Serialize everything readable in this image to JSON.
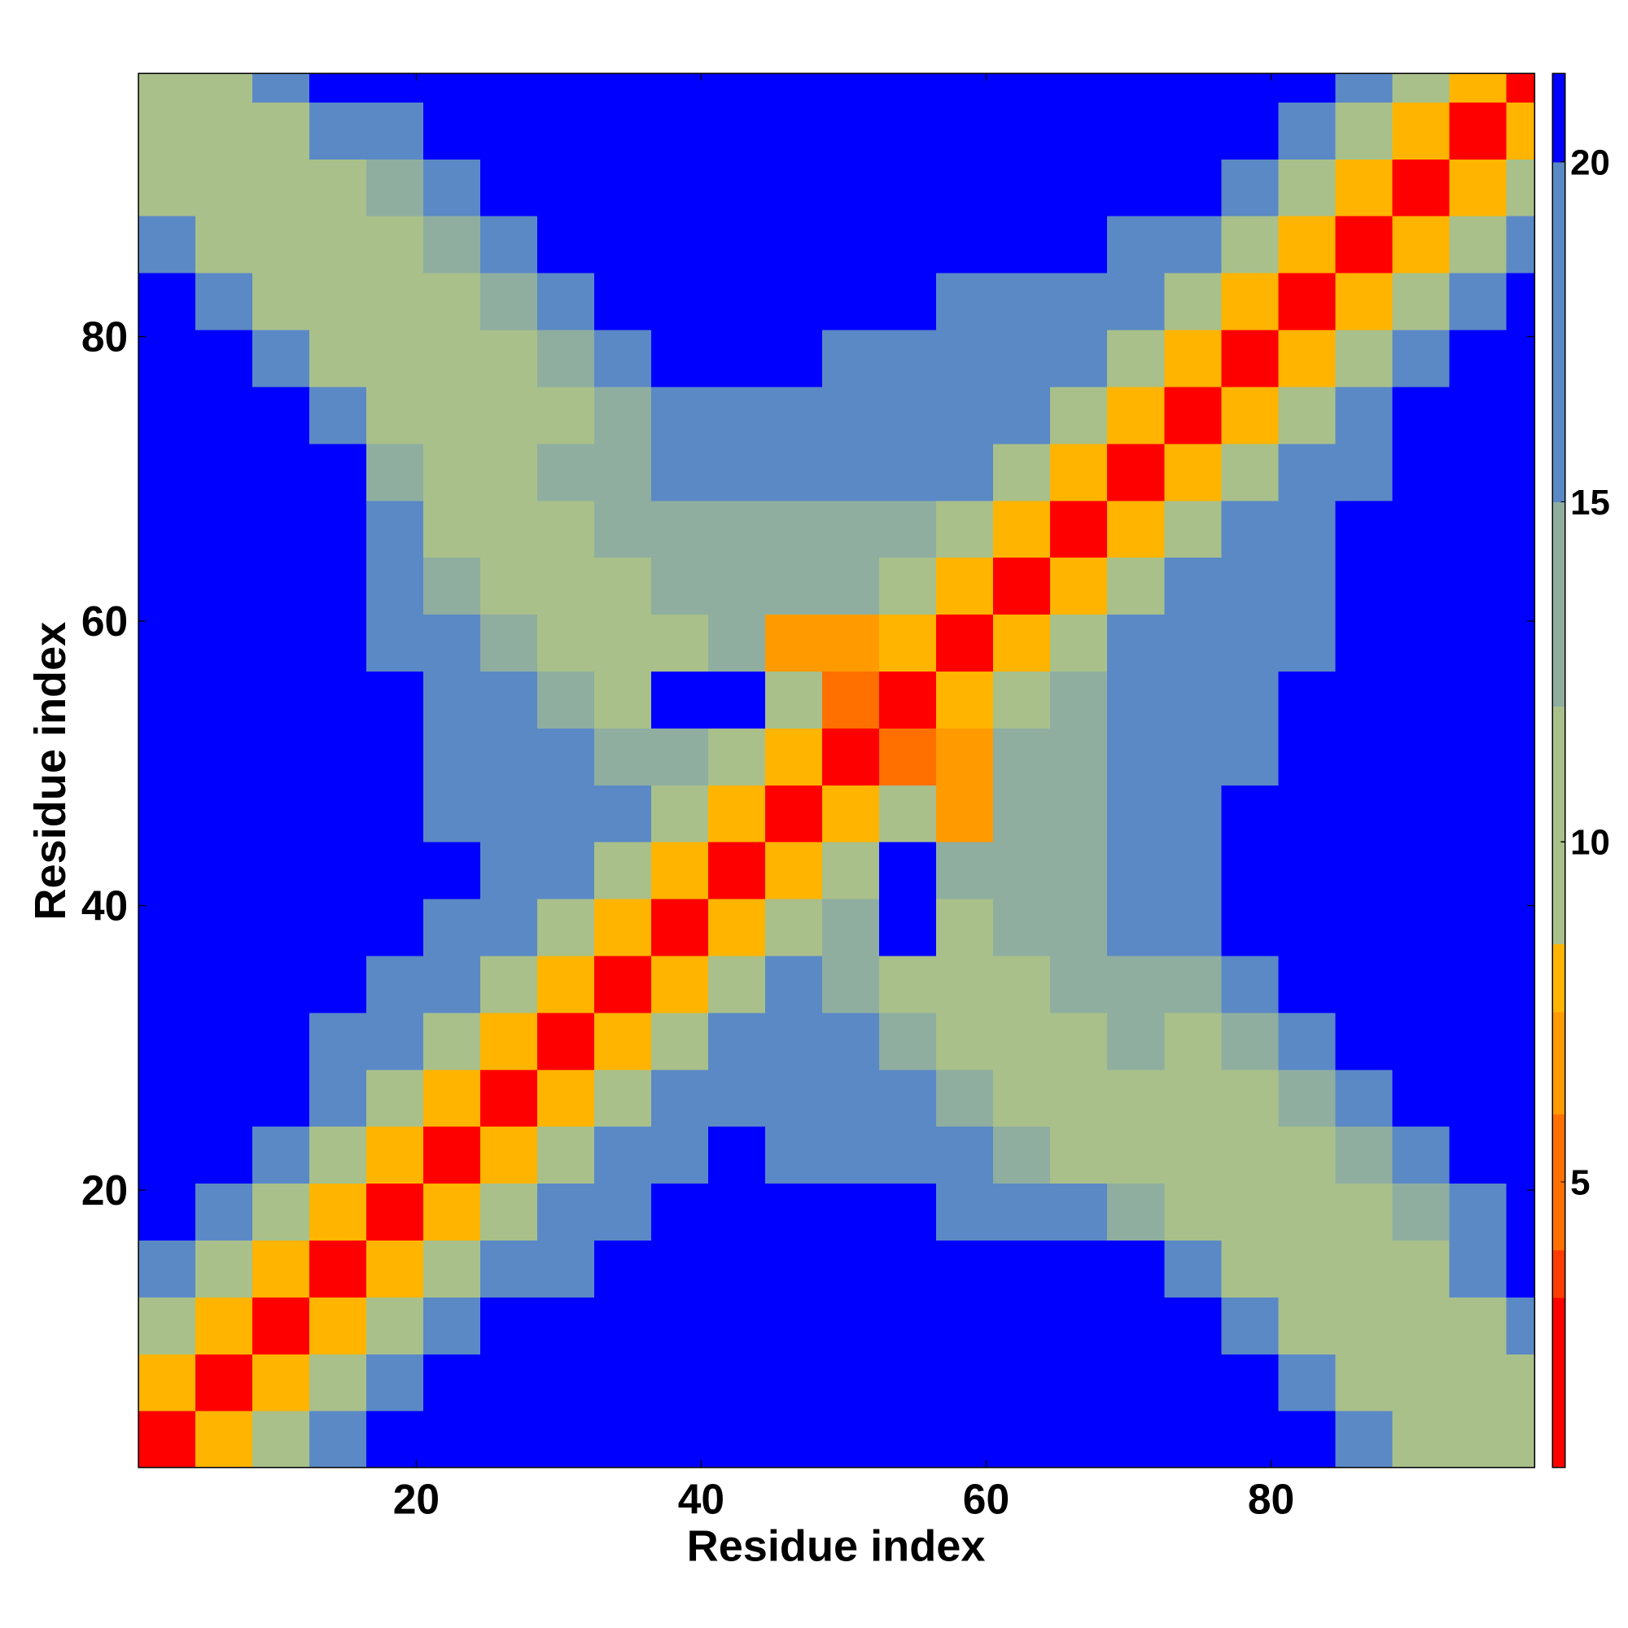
{
  "chart_data": {
    "type": "heatmap",
    "xlabel": "Residue index",
    "ylabel": "Residue index",
    "xlim": [
      0.5,
      98.5
    ],
    "ylim": [
      0.5,
      98.5
    ],
    "xticks": [
      20,
      40,
      60,
      80
    ],
    "yticks": [
      20,
      40,
      60,
      80
    ],
    "x_edges": [
      0.5,
      4.5,
      8.5,
      12.5,
      16.5,
      20.5,
      24.5,
      28.5,
      32.5,
      36.5,
      40.5,
      44.5,
      48.5,
      52.5,
      56.5,
      60.5,
      64.5,
      68.5,
      72.5,
      76.5,
      80.5,
      84.5,
      88.5,
      92.5,
      96.5,
      98.5
    ],
    "y_edges": [
      0.5,
      4.5,
      8.5,
      12.5,
      16.5,
      20.5,
      24.5,
      28.5,
      32.5,
      36.5,
      40.5,
      44.5,
      48.5,
      52.5,
      56.5,
      60.5,
      64.5,
      68.5,
      72.5,
      76.5,
      80.5,
      84.5,
      88.5,
      92.5,
      96.5,
      98.5
    ],
    "values": [
      [
        2,
        8,
        12,
        17,
        21,
        21,
        21,
        21,
        21,
        21,
        21,
        21,
        21,
        21,
        21,
        21,
        21,
        21,
        21,
        21,
        21,
        16,
        11,
        9,
        9
      ],
      [
        8,
        2,
        8,
        12,
        17,
        21,
        21,
        21,
        21,
        21,
        21,
        21,
        21,
        21,
        21,
        21,
        21,
        21,
        21,
        21,
        16,
        11,
        9,
        9,
        11
      ],
      [
        12,
        8,
        2,
        8,
        12,
        17,
        21,
        21,
        21,
        21,
        21,
        21,
        21,
        21,
        21,
        21,
        21,
        21,
        21,
        16,
        11,
        9,
        9,
        11,
        16
      ],
      [
        17,
        12,
        8,
        2,
        8,
        12,
        17,
        18,
        21,
        21,
        21,
        21,
        21,
        21,
        21,
        21,
        21,
        21,
        16,
        11,
        9,
        9,
        11,
        16,
        21
      ],
      [
        21,
        17,
        12,
        8,
        2,
        8,
        12,
        17,
        18,
        21,
        21,
        21,
        21,
        21,
        19,
        19,
        18,
        15,
        12,
        10,
        10,
        12,
        15,
        18,
        21
      ],
      [
        21,
        21,
        17,
        12,
        8,
        2,
        8,
        12,
        17,
        18,
        21,
        20,
        18,
        19,
        17,
        15,
        12,
        10,
        10,
        10,
        12,
        15,
        18,
        21,
        21
      ],
      [
        21,
        21,
        21,
        17,
        12,
        8,
        2,
        8,
        12,
        17,
        18,
        17,
        19,
        17,
        15,
        12,
        10,
        11,
        10,
        12,
        15,
        18,
        21,
        21,
        21
      ],
      [
        21,
        21,
        21,
        18,
        17,
        12,
        8,
        2,
        8,
        12,
        17,
        18,
        17,
        15,
        12,
        10,
        12,
        13,
        12,
        15,
        18,
        21,
        21,
        21,
        21
      ],
      [
        21,
        21,
        21,
        21,
        18,
        17,
        12,
        8,
        2,
        8,
        12,
        17,
        15,
        12,
        10,
        12,
        14,
        15,
        15,
        18,
        21,
        21,
        21,
        21,
        21
      ],
      [
        21,
        21,
        21,
        21,
        21,
        18,
        17,
        12,
        8,
        2,
        8,
        12,
        15,
        21,
        12,
        14,
        14,
        18,
        18,
        21,
        21,
        21,
        21,
        21,
        21
      ],
      [
        21,
        21,
        21,
        21,
        21,
        21,
        18,
        17,
        12,
        8,
        2,
        8,
        10,
        21,
        14,
        14,
        14,
        17,
        19,
        21,
        21,
        21,
        21,
        21,
        21
      ],
      [
        21,
        21,
        21,
        21,
        21,
        20,
        17,
        18,
        17,
        12,
        8,
        2,
        8,
        10,
        7,
        14,
        15,
        17,
        19,
        21,
        21,
        21,
        21,
        21,
        21
      ],
      [
        21,
        21,
        21,
        21,
        21,
        18,
        19,
        17,
        15,
        15,
        10,
        8,
        2,
        6,
        7,
        14,
        14,
        17,
        18,
        18,
        21,
        21,
        21,
        21,
        21
      ],
      [
        21,
        21,
        21,
        21,
        21,
        19,
        17,
        15,
        12,
        21,
        21,
        10,
        6,
        2,
        8,
        12,
        15,
        17,
        17,
        18,
        21,
        21,
        21,
        21,
        21
      ],
      [
        21,
        21,
        21,
        21,
        19,
        17,
        15,
        12,
        10,
        12,
        14,
        7,
        7,
        8,
        2,
        8,
        12,
        17,
        18,
        18,
        20,
        21,
        21,
        21,
        21
      ],
      [
        21,
        21,
        21,
        21,
        19,
        15,
        12,
        10,
        12,
        14,
        14,
        14,
        14,
        12,
        8,
        2,
        8,
        12,
        16,
        18,
        19,
        21,
        21,
        21,
        21
      ],
      [
        21,
        21,
        21,
        21,
        18,
        12,
        10,
        12,
        14,
        14,
        14,
        15,
        14,
        15,
        12,
        8,
        2,
        8,
        12,
        17,
        19,
        21,
        21,
        21,
        21
      ],
      [
        21,
        21,
        21,
        21,
        15,
        10,
        11,
        13,
        15,
        18,
        17,
        17,
        17,
        17,
        17,
        12,
        8,
        2,
        8,
        12,
        17,
        19,
        21,
        21,
        21
      ],
      [
        21,
        21,
        21,
        16,
        12,
        10,
        10,
        12,
        15,
        18,
        19,
        19,
        18,
        17,
        18,
        16,
        12,
        8,
        2,
        8,
        12,
        17,
        21,
        21,
        21
      ],
      [
        21,
        21,
        16,
        11,
        10,
        10,
        12,
        15,
        18,
        21,
        21,
        21,
        18,
        18,
        18,
        18,
        17,
        12,
        8,
        2,
        8,
        12,
        17,
        21,
        21
      ],
      [
        21,
        16,
        11,
        9,
        10,
        12,
        15,
        18,
        21,
        21,
        21,
        21,
        21,
        21,
        20,
        19,
        19,
        17,
        12,
        8,
        2,
        8,
        12,
        17,
        21
      ],
      [
        16,
        11,
        9,
        9,
        12,
        15,
        18,
        21,
        21,
        21,
        21,
        21,
        21,
        21,
        21,
        21,
        21,
        19,
        17,
        12,
        8,
        2,
        8,
        12,
        17
      ],
      [
        11,
        9,
        9,
        11,
        15,
        18,
        21,
        21,
        21,
        21,
        21,
        21,
        21,
        21,
        21,
        21,
        21,
        21,
        21,
        17,
        12,
        8,
        2,
        8,
        12
      ],
      [
        9,
        9,
        11,
        16,
        18,
        21,
        21,
        21,
        21,
        21,
        21,
        21,
        21,
        21,
        21,
        21,
        21,
        21,
        21,
        21,
        17,
        12,
        8,
        2,
        8
      ],
      [
        9,
        11,
        16,
        21,
        21,
        21,
        21,
        21,
        21,
        21,
        21,
        21,
        21,
        21,
        21,
        21,
        21,
        21,
        21,
        21,
        21,
        17,
        12,
        8,
        2
      ]
    ],
    "colorbar": {
      "boundaries": [
        0.8,
        3.3,
        4,
        6,
        7.5,
        8.5,
        12,
        15,
        20,
        21.3
      ],
      "colors": [
        "#ff0000",
        "#ff3c00",
        "#ff7000",
        "#ff9a00",
        "#ffb400",
        "#a9c08a",
        "#8faea0",
        "#5b89c6",
        "#0000ff"
      ],
      "ticks": [
        5,
        10,
        15,
        20
      ]
    }
  }
}
